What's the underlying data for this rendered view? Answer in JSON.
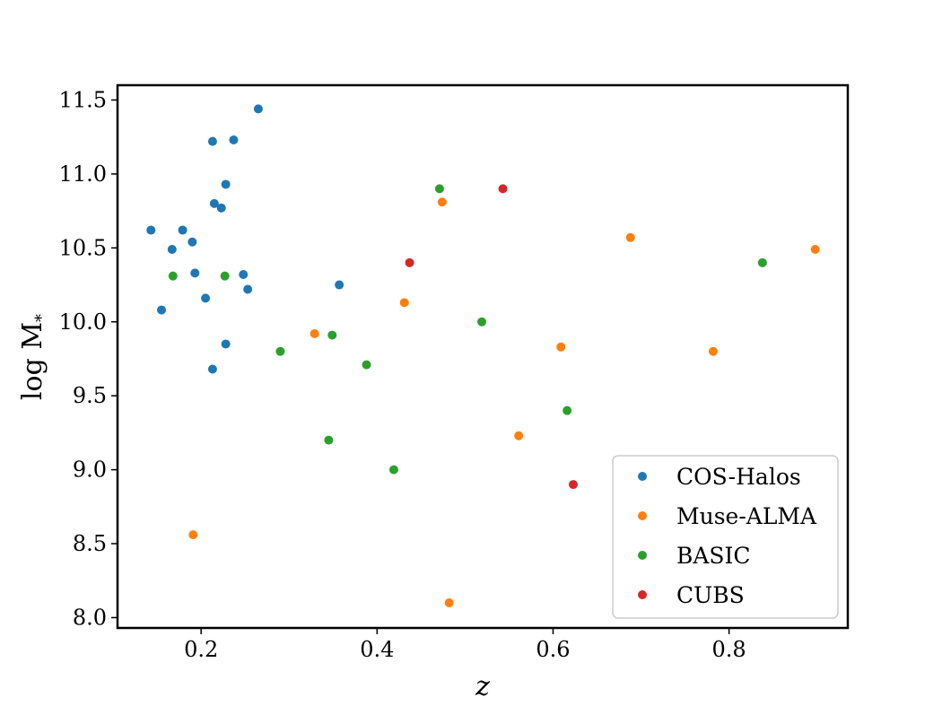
{
  "chart_data": {
    "type": "scatter",
    "title": "",
    "xlabel": "z",
    "ylabel": "log M",
    "ylabel_subscript": "*",
    "xlim": [
      0.105,
      0.935
    ],
    "ylim": [
      7.93,
      11.6
    ],
    "xticks": [
      0.2,
      0.4,
      0.6,
      0.8
    ],
    "xtick_labels": [
      "0.2",
      "0.4",
      "0.6",
      "0.8"
    ],
    "yticks": [
      8.0,
      8.5,
      9.0,
      9.5,
      10.0,
      10.5,
      11.0,
      11.5
    ],
    "ytick_labels": [
      "8.0",
      "8.5",
      "9.0",
      "9.5",
      "10.0",
      "10.5",
      "11.0",
      "11.5"
    ],
    "grid": false,
    "legend_position": "lower-right",
    "series": [
      {
        "name": "COS-Halos",
        "color": "#1f77b4",
        "points": [
          [
            0.143,
            10.62
          ],
          [
            0.155,
            10.08
          ],
          [
            0.167,
            10.49
          ],
          [
            0.179,
            10.62
          ],
          [
            0.19,
            10.54
          ],
          [
            0.193,
            10.33
          ],
          [
            0.205,
            10.16
          ],
          [
            0.213,
            11.22
          ],
          [
            0.215,
            10.8
          ],
          [
            0.213,
            9.68
          ],
          [
            0.223,
            10.77
          ],
          [
            0.228,
            10.93
          ],
          [
            0.228,
            9.85
          ],
          [
            0.237,
            11.23
          ],
          [
            0.248,
            10.32
          ],
          [
            0.253,
            10.22
          ],
          [
            0.265,
            11.44
          ],
          [
            0.357,
            10.25
          ]
        ]
      },
      {
        "name": "Muse-ALMA",
        "color": "#ff7f0e",
        "points": [
          [
            0.191,
            8.56
          ],
          [
            0.329,
            9.92
          ],
          [
            0.431,
            10.13
          ],
          [
            0.474,
            10.81
          ],
          [
            0.482,
            8.1
          ],
          [
            0.561,
            9.23
          ],
          [
            0.609,
            9.83
          ],
          [
            0.688,
            10.57
          ],
          [
            0.782,
            9.8
          ],
          [
            0.898,
            10.49
          ]
        ]
      },
      {
        "name": "BASIC",
        "color": "#2ca02c",
        "points": [
          [
            0.168,
            10.31
          ],
          [
            0.227,
            10.31
          ],
          [
            0.29,
            9.8
          ],
          [
            0.345,
            9.2
          ],
          [
            0.349,
            9.91
          ],
          [
            0.388,
            9.71
          ],
          [
            0.419,
            9.0
          ],
          [
            0.471,
            10.9
          ],
          [
            0.519,
            10.0
          ],
          [
            0.616,
            9.4
          ],
          [
            0.838,
            10.4
          ]
        ]
      },
      {
        "name": "CUBS",
        "color": "#d62728",
        "points": [
          [
            0.437,
            10.4
          ],
          [
            0.543,
            10.9
          ],
          [
            0.623,
            8.9
          ]
        ]
      }
    ]
  }
}
